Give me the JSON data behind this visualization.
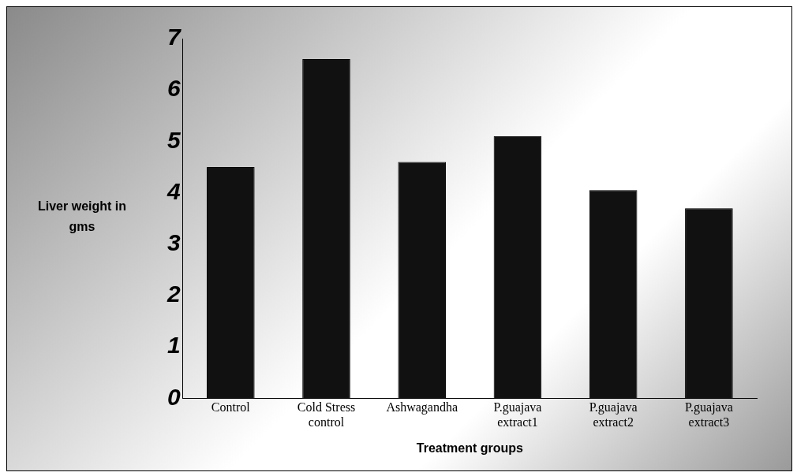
{
  "chart_data": {
    "type": "bar",
    "xlabel": "Treatment groups",
    "ylabel": "Liver weight in gms",
    "categories": [
      "Control",
      "Cold Stress control",
      "Ashwagandha",
      "P.guajava extract1",
      "P.guajava extract2",
      "P.guajava extract3"
    ],
    "values": [
      4.5,
      6.6,
      4.6,
      5.1,
      4.05,
      3.7
    ],
    "color": "#111111",
    "ylim": [
      0,
      7
    ],
    "yticks": [
      0,
      1,
      2,
      3,
      4,
      5,
      6,
      7
    ],
    "grid": false,
    "legend": false
  }
}
